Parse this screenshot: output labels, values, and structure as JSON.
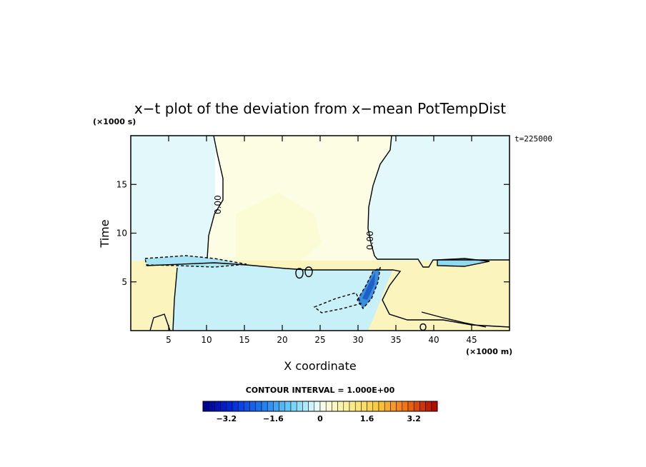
{
  "chart_data": {
    "type": "heatmap",
    "title": "x−t plot of the deviation from x−mean PotTempDist",
    "xlabel": "X coordinate",
    "ylabel": "Time",
    "x_unit": "(×1000 m)",
    "y_unit": "(×1000 s)",
    "time_stamp": "t=225000",
    "xlim": [
      0,
      50
    ],
    "ylim": [
      0,
      20
    ],
    "x_ticks": [
      5,
      10,
      15,
      20,
      25,
      30,
      35,
      40,
      45
    ],
    "y_ticks": [
      5,
      10,
      15
    ],
    "contour_label": "0.00",
    "contour_interval_text": "CONTOUR INTERVAL = 1.000E+00",
    "colorbar": {
      "min": -4,
      "max": 4,
      "tick_values": [
        -3.2,
        -1.6,
        0,
        1.6,
        3.2
      ],
      "tick_labels": [
        "−3.2",
        "−1.6",
        "0",
        "1.6",
        "3.2"
      ]
    },
    "regions": [
      {
        "name": "upper-left",
        "value": -0.3
      },
      {
        "name": "upper-middle",
        "value": 0.3
      },
      {
        "name": "upper-right",
        "value": -0.3
      },
      {
        "name": "lower-band",
        "value": 0.6
      },
      {
        "name": "lower-cold-pool",
        "value": -0.8
      },
      {
        "name": "cold-streak",
        "value": -2.5
      }
    ]
  }
}
